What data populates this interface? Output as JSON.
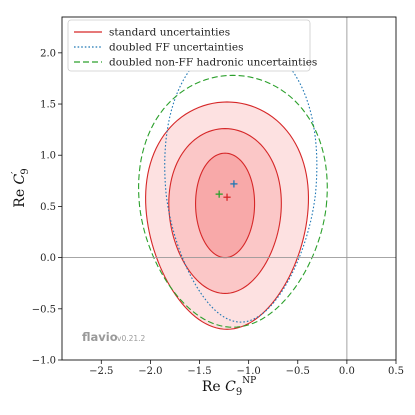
{
  "chart_data": {
    "type": "contour",
    "xlabel": "Re C_9^NP",
    "ylabel": "Re C_9'",
    "xlim": [
      -2.9,
      0.5
    ],
    "ylim": [
      -1.0,
      2.35
    ],
    "x_ticks": [
      -2.5,
      -2.0,
      -1.5,
      -1.0,
      -0.5,
      0.0,
      0.5
    ],
    "y_ticks": [
      -1.0,
      -0.5,
      0.0,
      0.5,
      1.0,
      1.5,
      2.0
    ],
    "x_tick_labels": [
      "−2.5",
      "−2.0",
      "−1.5",
      "−1.0",
      "−0.5",
      "0.0",
      "0.5"
    ],
    "y_tick_labels": [
      "−1.0",
      "−0.5",
      "0.0",
      "0.5",
      "1.0",
      "1.5",
      "2.0"
    ],
    "reference_lines": {
      "x": 0.0,
      "y": 0.0
    },
    "legend_position": "top-left",
    "series": [
      {
        "name": "standard uncertainties",
        "style": "solid",
        "color": "#d62728",
        "best_fit": [
          -1.22,
          0.59
        ],
        "contours": [
          {
            "level": "1 sigma",
            "center": [
              -1.24,
              0.5
            ],
            "rx": 0.3,
            "ry_up": 0.52,
            "ry_down": 0.5,
            "skew": 0.05
          },
          {
            "level": "2 sigma",
            "center": [
              -1.24,
              0.45
            ],
            "rx": 0.57,
            "ry_up": 0.81,
            "ry_down": 0.8,
            "skew": 0.1
          },
          {
            "level": "3 sigma",
            "center": [
              -1.22,
              0.42
            ],
            "rx": 0.82,
            "ry_up": 1.1,
            "ry_down": 1.12,
            "skew": 0.15
          }
        ]
      },
      {
        "name": "doubled FF uncertainties",
        "style": "dotted",
        "color": "#1f77b4",
        "best_fit": [
          -1.15,
          0.72
        ],
        "contours": [
          {
            "level": "3 sigma",
            "center": [
              -1.08,
              0.62
            ],
            "rx": 0.76,
            "ry_up": 1.5,
            "ry_down": 1.25,
            "skew": 0.2
          }
        ]
      },
      {
        "name": "doubled non-FF hadronic uncertainties",
        "style": "dashed",
        "color": "#2ca02c",
        "best_fit": [
          -1.3,
          0.62
        ],
        "contours": [
          {
            "level": "3 sigma",
            "center": [
              -1.16,
              0.5
            ],
            "rx": 0.95,
            "ry_up": 1.28,
            "ry_down": 1.18,
            "skew": 0.15
          }
        ]
      }
    ]
  },
  "legend": {
    "items": [
      {
        "label": "standard uncertainties",
        "color": "#d62728",
        "style": "solid"
      },
      {
        "label": "doubled FF uncertainties",
        "color": "#1f77b4",
        "style": "dotted"
      },
      {
        "label": "doubled non-FF hadronic uncertainties",
        "color": "#2ca02c",
        "style": "dashed"
      }
    ]
  },
  "watermark": {
    "main": "flavio",
    "version": "v0.21.2"
  },
  "colors": {
    "fill_3sigma": "#fde1e1",
    "fill_2sigma": "#fbc7c7",
    "fill_1sigma": "#f8a9a9",
    "reference_line": "#999999"
  }
}
